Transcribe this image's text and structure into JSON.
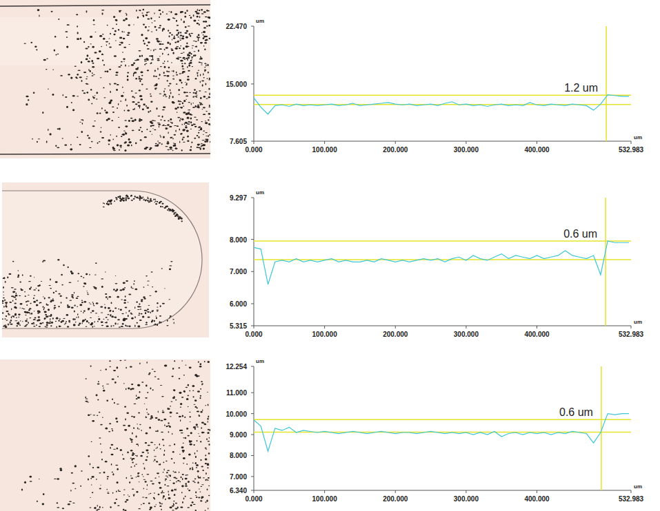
{
  "chart_data": [
    {
      "type": "line",
      "y_label": "um",
      "x_label": "um",
      "color": "#3cc6d6",
      "annotation": "1.2 um",
      "hlines": [
        13.55,
        12.35
      ],
      "vline": 498,
      "xlim": [
        0,
        532.983
      ],
      "xticks": [
        {
          "value": 0,
          "label": "0.000"
        },
        {
          "value": 100,
          "label": "100.000"
        },
        {
          "value": 200,
          "label": "200.000"
        },
        {
          "value": 300,
          "label": "300.000"
        },
        {
          "value": 400,
          "label": "400.000"
        },
        {
          "value": 532.983,
          "label": "532.983"
        }
      ],
      "ylim": [
        7.605,
        22.47
      ],
      "yticks": [
        {
          "value": 22.47,
          "label": "22.470"
        },
        {
          "value": 15,
          "label": "15.000"
        },
        {
          "value": 7.605,
          "label": "7.605"
        }
      ],
      "x": [
        0,
        10,
        20,
        30,
        40,
        50,
        60,
        70,
        80,
        90,
        100,
        110,
        120,
        130,
        140,
        150,
        160,
        170,
        180,
        190,
        200,
        210,
        220,
        230,
        240,
        250,
        260,
        270,
        280,
        290,
        300,
        310,
        320,
        330,
        340,
        350,
        360,
        370,
        380,
        390,
        400,
        410,
        420,
        430,
        440,
        450,
        460,
        470,
        480,
        490,
        500,
        510,
        520,
        530
      ],
      "values": [
        13.2,
        12.0,
        11.1,
        12.2,
        12.3,
        12.1,
        12.4,
        12.2,
        12.3,
        12.2,
        12.3,
        12.4,
        12.2,
        12.3,
        12.5,
        12.2,
        12.3,
        12.4,
        12.5,
        12.6,
        12.4,
        12.3,
        12.4,
        12.2,
        12.3,
        12.4,
        12.2,
        12.5,
        12.7,
        12.3,
        12.4,
        12.2,
        12.3,
        12.1,
        12.3,
        12.4,
        12.2,
        12.3,
        12.2,
        12.6,
        12.3,
        12.2,
        12.4,
        12.3,
        12.2,
        12.4,
        12.3,
        12.2,
        11.6,
        12.4,
        13.6,
        13.5,
        13.4,
        13.4
      ]
    },
    {
      "type": "line",
      "y_label": "um",
      "x_label": "um",
      "color": "#3cc6d6",
      "annotation": "0.6 um",
      "hlines": [
        7.95,
        7.37
      ],
      "vline": 497,
      "xlim": [
        0,
        532.983
      ],
      "xticks": [
        {
          "value": 0,
          "label": "0.000"
        },
        {
          "value": 100,
          "label": "100.000"
        },
        {
          "value": 200,
          "label": "200.000"
        },
        {
          "value": 300,
          "label": "300.000"
        },
        {
          "value": 400,
          "label": "400.000"
        },
        {
          "value": 532.983,
          "label": "532.983"
        }
      ],
      "ylim": [
        5.315,
        9.297
      ],
      "yticks": [
        {
          "value": 9.297,
          "label": "9.297"
        },
        {
          "value": 8,
          "label": "8.000"
        },
        {
          "value": 7,
          "label": "7.000"
        },
        {
          "value": 6,
          "label": "6.000"
        },
        {
          "value": 5.315,
          "label": "5.315"
        }
      ],
      "x": [
        0,
        10,
        20,
        30,
        40,
        50,
        60,
        70,
        80,
        90,
        100,
        110,
        120,
        130,
        140,
        150,
        160,
        170,
        180,
        190,
        200,
        210,
        220,
        230,
        240,
        250,
        260,
        270,
        280,
        290,
        300,
        310,
        320,
        330,
        340,
        350,
        360,
        370,
        380,
        390,
        400,
        410,
        420,
        430,
        440,
        450,
        460,
        470,
        480,
        490,
        500,
        510,
        520,
        530
      ],
      "values": [
        7.75,
        7.7,
        6.6,
        7.3,
        7.35,
        7.3,
        7.4,
        7.3,
        7.35,
        7.3,
        7.35,
        7.4,
        7.3,
        7.35,
        7.3,
        7.3,
        7.35,
        7.3,
        7.4,
        7.35,
        7.3,
        7.35,
        7.3,
        7.35,
        7.4,
        7.35,
        7.4,
        7.3,
        7.4,
        7.45,
        7.35,
        7.5,
        7.4,
        7.35,
        7.45,
        7.55,
        7.4,
        7.5,
        7.45,
        7.4,
        7.5,
        7.4,
        7.45,
        7.5,
        7.65,
        7.5,
        7.45,
        7.4,
        7.5,
        6.9,
        7.95,
        7.9,
        7.9,
        7.9
      ]
    },
    {
      "type": "line",
      "y_label": "um",
      "x_label": "um",
      "color": "#3cc6d6",
      "annotation": "0.6 um",
      "hlines": [
        9.72,
        9.12
      ],
      "vline": 491,
      "xlim": [
        0,
        532.983
      ],
      "xticks": [
        {
          "value": 0,
          "label": "0.000"
        },
        {
          "value": 100,
          "label": "100.000"
        },
        {
          "value": 200,
          "label": "200.000"
        },
        {
          "value": 300,
          "label": "300.000"
        },
        {
          "value": 400,
          "label": "400.000"
        },
        {
          "value": 532.983,
          "label": "532.983"
        }
      ],
      "ylim": [
        6.34,
        12.254
      ],
      "yticks": [
        {
          "value": 12.254,
          "label": "12.254"
        },
        {
          "value": 11,
          "label": "11.000"
        },
        {
          "value": 10,
          "label": "10.000"
        },
        {
          "value": 9,
          "label": "9.000"
        },
        {
          "value": 8,
          "label": "8.000"
        },
        {
          "value": 7,
          "label": "7.000"
        },
        {
          "value": 6.34,
          "label": "6.340"
        }
      ],
      "x": [
        0,
        10,
        20,
        30,
        40,
        50,
        60,
        70,
        80,
        90,
        100,
        110,
        120,
        130,
        140,
        150,
        160,
        170,
        180,
        190,
        200,
        210,
        220,
        230,
        240,
        250,
        260,
        270,
        280,
        290,
        300,
        310,
        320,
        330,
        340,
        350,
        360,
        370,
        380,
        390,
        400,
        410,
        420,
        430,
        440,
        450,
        460,
        470,
        480,
        490,
        500,
        510,
        520,
        530
      ],
      "values": [
        9.7,
        9.4,
        8.2,
        9.3,
        9.2,
        9.35,
        9.1,
        9.2,
        9.15,
        9.1,
        9.15,
        9.1,
        9.05,
        9.1,
        9.15,
        9.1,
        9.05,
        9.1,
        9.15,
        9.1,
        9.05,
        9.1,
        9.1,
        9.05,
        9.1,
        9.15,
        9.1,
        9.05,
        9.1,
        9.05,
        9.1,
        9.0,
        9.1,
        9.0,
        9.15,
        8.9,
        9.05,
        9.1,
        9.0,
        9.1,
        9.05,
        9.1,
        9.0,
        9.1,
        9.05,
        9.15,
        9.1,
        9.05,
        8.6,
        9.1,
        10.0,
        9.95,
        10.0,
        10.0
      ]
    }
  ]
}
